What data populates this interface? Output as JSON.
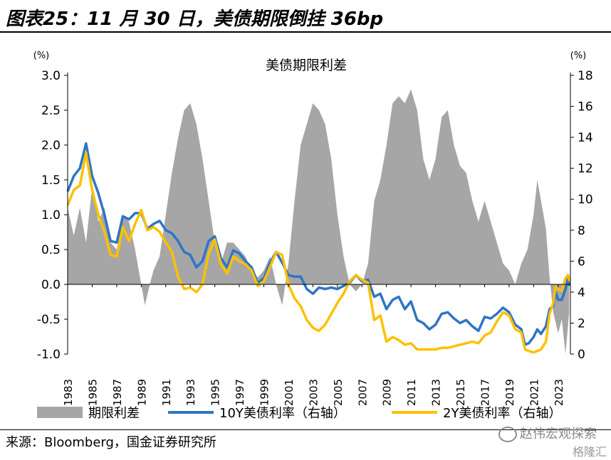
{
  "figure": {
    "title": "图表25：11 月 30 日，美债期限倒挂 36bp",
    "source": "来源：Bloomberg，国金证券研究所",
    "watermark": "赵伟宏观探索",
    "watermark2": "格隆汇"
  },
  "chart_data": {
    "type": "combo",
    "title": "美债期限利差",
    "left_axis": {
      "unit": "(%)",
      "min": -1.0,
      "max": 3.0,
      "ticks": [
        "3.0",
        "2.5",
        "2.0",
        "1.5",
        "1.0",
        "0.5",
        "0.0",
        "-0.5",
        "-1.0"
      ]
    },
    "right_axis": {
      "unit": "(%)",
      "min": 0,
      "max": 18,
      "ticks": [
        "18",
        "16",
        "14",
        "12",
        "10",
        "8",
        "6",
        "4",
        "2",
        "0"
      ]
    },
    "x_range": [
      1983,
      2024.0
    ],
    "x_ticks": [
      "1983",
      "1985",
      "1987",
      "1989",
      "1991",
      "1993",
      "1995",
      "1997",
      "1999",
      "2001",
      "2003",
      "2005",
      "2007",
      "2009",
      "2011",
      "2013",
      "2015",
      "2017",
      "2019",
      "2021",
      "2023"
    ],
    "colors": {
      "spread": "#a6a6a6",
      "ten_year": "#2e75c6",
      "two_year": "#ffc000"
    },
    "legend": [
      "期限利差",
      "10Y美债利率（右轴）",
      "2Y美债利率（右轴）"
    ],
    "series": [
      {
        "name": "期限利差",
        "axis": "left",
        "type": "area",
        "points": [
          [
            1983.0,
            1.1
          ],
          [
            1983.5,
            0.7
          ],
          [
            1984.0,
            1.1
          ],
          [
            1984.5,
            0.6
          ],
          [
            1985.0,
            1.4
          ],
          [
            1985.5,
            0.9
          ],
          [
            1986.0,
            1.1
          ],
          [
            1986.5,
            0.6
          ],
          [
            1987.0,
            0.5
          ],
          [
            1987.5,
            1.0
          ],
          [
            1988.0,
            0.9
          ],
          [
            1988.5,
            0.5
          ],
          [
            1989.0,
            0.0
          ],
          [
            1989.3,
            -0.3
          ],
          [
            1989.7,
            0.0
          ],
          [
            1990.0,
            0.2
          ],
          [
            1990.5,
            0.4
          ],
          [
            1991.0,
            1.0
          ],
          [
            1991.5,
            1.6
          ],
          [
            1992.0,
            2.1
          ],
          [
            1992.5,
            2.5
          ],
          [
            1993.0,
            2.6
          ],
          [
            1993.5,
            2.3
          ],
          [
            1994.0,
            1.8
          ],
          [
            1994.5,
            1.2
          ],
          [
            1995.0,
            0.6
          ],
          [
            1995.5,
            0.3
          ],
          [
            1996.0,
            0.6
          ],
          [
            1996.5,
            0.6
          ],
          [
            1997.0,
            0.5
          ],
          [
            1997.5,
            0.4
          ],
          [
            1998.0,
            0.2
          ],
          [
            1998.5,
            0.1
          ],
          [
            1999.0,
            0.2
          ],
          [
            1999.5,
            0.4
          ],
          [
            2000.0,
            0.0
          ],
          [
            2000.5,
            -0.3
          ],
          [
            2001.0,
            0.3
          ],
          [
            2001.5,
            1.2
          ],
          [
            2002.0,
            2.0
          ],
          [
            2002.5,
            2.3
          ],
          [
            2003.0,
            2.6
          ],
          [
            2003.5,
            2.5
          ],
          [
            2004.0,
            2.3
          ],
          [
            2004.5,
            1.8
          ],
          [
            2005.0,
            1.0
          ],
          [
            2005.5,
            0.4
          ],
          [
            2006.0,
            0.0
          ],
          [
            2006.5,
            -0.1
          ],
          [
            2007.0,
            0.0
          ],
          [
            2007.5,
            0.3
          ],
          [
            2008.0,
            1.2
          ],
          [
            2008.5,
            1.5
          ],
          [
            2009.0,
            2.0
          ],
          [
            2009.5,
            2.6
          ],
          [
            2010.0,
            2.7
          ],
          [
            2010.5,
            2.6
          ],
          [
            2011.0,
            2.8
          ],
          [
            2011.5,
            2.5
          ],
          [
            2012.0,
            1.8
          ],
          [
            2012.5,
            1.5
          ],
          [
            2013.0,
            1.8
          ],
          [
            2013.5,
            2.4
          ],
          [
            2014.0,
            2.5
          ],
          [
            2014.5,
            2.0
          ],
          [
            2015.0,
            1.7
          ],
          [
            2015.5,
            1.6
          ],
          [
            2016.0,
            1.2
          ],
          [
            2016.5,
            0.9
          ],
          [
            2017.0,
            1.2
          ],
          [
            2017.5,
            0.9
          ],
          [
            2018.0,
            0.6
          ],
          [
            2018.5,
            0.3
          ],
          [
            2019.0,
            0.2
          ],
          [
            2019.5,
            0.0
          ],
          [
            2020.0,
            0.3
          ],
          [
            2020.5,
            0.5
          ],
          [
            2021.0,
            1.0
          ],
          [
            2021.3,
            1.5
          ],
          [
            2021.6,
            1.2
          ],
          [
            2022.0,
            0.8
          ],
          [
            2022.3,
            0.1
          ],
          [
            2022.6,
            -0.4
          ],
          [
            2023.0,
            -0.7
          ],
          [
            2023.3,
            -0.5
          ],
          [
            2023.6,
            -1.0
          ],
          [
            2023.9,
            -0.4
          ]
        ]
      },
      {
        "name": "10Y美债利率（右轴）",
        "axis": "right",
        "type": "line",
        "points": [
          [
            1983.0,
            10.5
          ],
          [
            1983.5,
            11.5
          ],
          [
            1984.0,
            12.0
          ],
          [
            1984.5,
            13.6
          ],
          [
            1985.0,
            11.5
          ],
          [
            1985.5,
            10.4
          ],
          [
            1986.0,
            9.0
          ],
          [
            1986.5,
            7.3
          ],
          [
            1987.0,
            7.2
          ],
          [
            1987.5,
            8.9
          ],
          [
            1988.0,
            8.7
          ],
          [
            1988.5,
            9.1
          ],
          [
            1989.0,
            9.1
          ],
          [
            1989.5,
            8.1
          ],
          [
            1990.0,
            8.4
          ],
          [
            1990.5,
            8.6
          ],
          [
            1991.0,
            8.0
          ],
          [
            1991.5,
            7.8
          ],
          [
            1992.0,
            7.3
          ],
          [
            1992.5,
            6.6
          ],
          [
            1993.0,
            6.4
          ],
          [
            1993.5,
            5.6
          ],
          [
            1994.0,
            6.0
          ],
          [
            1994.5,
            7.3
          ],
          [
            1995.0,
            7.6
          ],
          [
            1995.5,
            6.2
          ],
          [
            1996.0,
            5.6
          ],
          [
            1996.5,
            6.7
          ],
          [
            1997.0,
            6.5
          ],
          [
            1997.5,
            6.0
          ],
          [
            1998.0,
            5.6
          ],
          [
            1998.5,
            4.6
          ],
          [
            1999.0,
            4.9
          ],
          [
            1999.5,
            5.9
          ],
          [
            2000.0,
            6.6
          ],
          [
            2000.5,
            5.9
          ],
          [
            2001.0,
            5.1
          ],
          [
            2001.5,
            5.0
          ],
          [
            2002.0,
            5.0
          ],
          [
            2002.5,
            4.2
          ],
          [
            2003.0,
            3.9
          ],
          [
            2003.5,
            4.3
          ],
          [
            2004.0,
            4.2
          ],
          [
            2004.5,
            4.3
          ],
          [
            2005.0,
            4.2
          ],
          [
            2005.5,
            4.4
          ],
          [
            2006.0,
            4.6
          ],
          [
            2006.5,
            5.1
          ],
          [
            2007.0,
            4.7
          ],
          [
            2007.5,
            4.8
          ],
          [
            2008.0,
            3.7
          ],
          [
            2008.5,
            3.9
          ],
          [
            2009.0,
            2.9
          ],
          [
            2009.5,
            3.5
          ],
          [
            2010.0,
            3.7
          ],
          [
            2010.5,
            2.9
          ],
          [
            2011.0,
            3.4
          ],
          [
            2011.5,
            2.2
          ],
          [
            2012.0,
            2.0
          ],
          [
            2012.5,
            1.6
          ],
          [
            2013.0,
            1.9
          ],
          [
            2013.5,
            2.6
          ],
          [
            2014.0,
            2.7
          ],
          [
            2014.5,
            2.3
          ],
          [
            2015.0,
            2.0
          ],
          [
            2015.5,
            2.2
          ],
          [
            2016.0,
            1.8
          ],
          [
            2016.5,
            1.5
          ],
          [
            2017.0,
            2.4
          ],
          [
            2017.5,
            2.3
          ],
          [
            2018.0,
            2.6
          ],
          [
            2018.5,
            3.0
          ],
          [
            2019.0,
            2.7
          ],
          [
            2019.5,
            1.9
          ],
          [
            2020.0,
            1.6
          ],
          [
            2020.3,
            0.6
          ],
          [
            2020.6,
            0.7
          ],
          [
            2021.0,
            1.1
          ],
          [
            2021.3,
            1.6
          ],
          [
            2021.6,
            1.3
          ],
          [
            2022.0,
            1.8
          ],
          [
            2022.3,
            2.9
          ],
          [
            2022.6,
            3.1
          ],
          [
            2022.8,
            4.0
          ],
          [
            2023.0,
            3.5
          ],
          [
            2023.3,
            3.5
          ],
          [
            2023.6,
            4.2
          ],
          [
            2023.8,
            4.9
          ],
          [
            2023.92,
            4.4
          ]
        ]
      },
      {
        "name": "2Y美债利率（右轴）",
        "axis": "right",
        "type": "line",
        "points": [
          [
            1983.0,
            9.6
          ],
          [
            1983.5,
            10.6
          ],
          [
            1984.0,
            10.9
          ],
          [
            1984.5,
            13.0
          ],
          [
            1985.0,
            10.6
          ],
          [
            1985.5,
            9.0
          ],
          [
            1986.0,
            7.9
          ],
          [
            1986.5,
            6.4
          ],
          [
            1987.0,
            6.3
          ],
          [
            1987.5,
            8.2
          ],
          [
            1988.0,
            7.3
          ],
          [
            1988.5,
            8.4
          ],
          [
            1989.0,
            9.3
          ],
          [
            1989.5,
            8.0
          ],
          [
            1990.0,
            8.2
          ],
          [
            1990.5,
            7.9
          ],
          [
            1991.0,
            7.2
          ],
          [
            1991.5,
            6.6
          ],
          [
            1992.0,
            5.0
          ],
          [
            1992.5,
            4.2
          ],
          [
            1993.0,
            4.3
          ],
          [
            1993.5,
            4.0
          ],
          [
            1994.0,
            4.5
          ],
          [
            1994.5,
            6.5
          ],
          [
            1995.0,
            7.4
          ],
          [
            1995.5,
            5.8
          ],
          [
            1996.0,
            5.2
          ],
          [
            1996.5,
            6.3
          ],
          [
            1997.0,
            6.0
          ],
          [
            1997.5,
            5.8
          ],
          [
            1998.0,
            5.4
          ],
          [
            1998.5,
            4.4
          ],
          [
            1999.0,
            4.7
          ],
          [
            1999.5,
            5.6
          ],
          [
            2000.0,
            6.6
          ],
          [
            2000.5,
            6.4
          ],
          [
            2001.0,
            4.5
          ],
          [
            2001.5,
            3.6
          ],
          [
            2002.0,
            3.1
          ],
          [
            2002.5,
            2.2
          ],
          [
            2003.0,
            1.7
          ],
          [
            2003.5,
            1.5
          ],
          [
            2004.0,
            1.9
          ],
          [
            2004.5,
            2.6
          ],
          [
            2005.0,
            3.3
          ],
          [
            2005.5,
            3.9
          ],
          [
            2006.0,
            4.7
          ],
          [
            2006.5,
            5.1
          ],
          [
            2007.0,
            4.8
          ],
          [
            2007.5,
            4.6
          ],
          [
            2008.0,
            2.2
          ],
          [
            2008.5,
            2.5
          ],
          [
            2009.0,
            0.8
          ],
          [
            2009.5,
            1.1
          ],
          [
            2010.0,
            0.9
          ],
          [
            2010.5,
            0.6
          ],
          [
            2011.0,
            0.7
          ],
          [
            2011.5,
            0.3
          ],
          [
            2012.0,
            0.3
          ],
          [
            2012.5,
            0.3
          ],
          [
            2013.0,
            0.3
          ],
          [
            2013.5,
            0.4
          ],
          [
            2014.0,
            0.4
          ],
          [
            2014.5,
            0.5
          ],
          [
            2015.0,
            0.6
          ],
          [
            2015.5,
            0.7
          ],
          [
            2016.0,
            0.8
          ],
          [
            2016.5,
            0.7
          ],
          [
            2017.0,
            1.2
          ],
          [
            2017.5,
            1.4
          ],
          [
            2018.0,
            2.1
          ],
          [
            2018.5,
            2.7
          ],
          [
            2019.0,
            2.5
          ],
          [
            2019.5,
            1.6
          ],
          [
            2020.0,
            1.4
          ],
          [
            2020.3,
            0.3
          ],
          [
            2020.6,
            0.2
          ],
          [
            2021.0,
            0.1
          ],
          [
            2021.3,
            0.2
          ],
          [
            2021.6,
            0.3
          ],
          [
            2022.0,
            0.8
          ],
          [
            2022.3,
            2.6
          ],
          [
            2022.6,
            3.3
          ],
          [
            2022.8,
            4.4
          ],
          [
            2023.0,
            4.2
          ],
          [
            2023.3,
            4.1
          ],
          [
            2023.6,
            4.9
          ],
          [
            2023.8,
            5.1
          ],
          [
            2023.92,
            4.7
          ]
        ]
      }
    ]
  }
}
